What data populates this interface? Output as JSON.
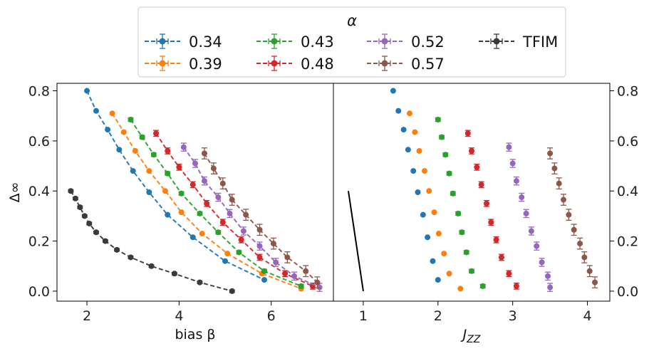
{
  "chart_data": [
    {
      "type": "scatter",
      "panel": "left",
      "xlabel": "bias β",
      "ylabel": "Δ∞",
      "xlim": [
        1.35,
        7.35
      ],
      "ylim": [
        -0.04,
        0.83
      ],
      "xticks": [
        2,
        4,
        6
      ],
      "yticks": [
        0.0,
        0.2,
        0.4,
        0.6,
        0.8
      ],
      "ytick_labels": [
        "0.0",
        "0.2",
        "0.4",
        "0.6",
        "0.8"
      ],
      "series": [
        {
          "name": "0.34",
          "color": "#1f77b4",
          "style": "dashed",
          "x": [
            2.0,
            2.2,
            2.45,
            2.7,
            3.0,
            3.35,
            3.75,
            4.3,
            5.0,
            5.85
          ],
          "y": [
            0.8,
            0.72,
            0.645,
            0.565,
            0.48,
            0.395,
            0.305,
            0.215,
            0.12,
            0.045
          ],
          "err": [
            0.003,
            0.003,
            0.003,
            0.003,
            0.003,
            0.003,
            0.003,
            0.003,
            0.003,
            0.003
          ]
        },
        {
          "name": "0.39",
          "color": "#ff7f0e",
          "style": "dashed",
          "x": [
            2.55,
            2.8,
            3.05,
            3.35,
            3.7,
            4.05,
            4.5,
            5.05,
            5.8,
            6.65
          ],
          "y": [
            0.71,
            0.635,
            0.56,
            0.48,
            0.4,
            0.315,
            0.23,
            0.15,
            0.07,
            0.01
          ],
          "err": [
            0.004,
            0.004,
            0.004,
            0.004,
            0.004,
            0.004,
            0.004,
            0.004,
            0.004,
            0.004
          ]
        },
        {
          "name": "0.43",
          "color": "#2ca02c",
          "style": "dashed",
          "x": [
            2.95,
            3.2,
            3.45,
            3.75,
            4.05,
            4.45,
            4.85,
            5.3,
            5.85,
            6.65
          ],
          "y": [
            0.685,
            0.615,
            0.545,
            0.47,
            0.39,
            0.31,
            0.235,
            0.155,
            0.08,
            0.02
          ],
          "err": [
            0.007,
            0.007,
            0.007,
            0.007,
            0.007,
            0.007,
            0.007,
            0.007,
            0.007,
            0.007
          ]
        },
        {
          "name": "0.48",
          "color": "#d62728",
          "style": "dashed",
          "x": [
            3.5,
            3.75,
            4.0,
            4.3,
            4.6,
            4.95,
            5.35,
            5.75,
            6.3,
            6.9
          ],
          "y": [
            0.63,
            0.56,
            0.495,
            0.425,
            0.35,
            0.275,
            0.205,
            0.135,
            0.07,
            0.02
          ],
          "err": [
            0.012,
            0.012,
            0.012,
            0.012,
            0.012,
            0.012,
            0.012,
            0.012,
            0.012,
            0.012
          ]
        },
        {
          "name": "0.52",
          "color": "#9467bd",
          "style": "dashed",
          "x": [
            4.1,
            4.35,
            4.55,
            4.85,
            5.1,
            5.4,
            5.75,
            6.1,
            6.5,
            7.05
          ],
          "y": [
            0.575,
            0.51,
            0.44,
            0.375,
            0.31,
            0.24,
            0.18,
            0.115,
            0.06,
            0.015
          ],
          "err": [
            0.016,
            0.016,
            0.016,
            0.016,
            0.016,
            0.016,
            0.016,
            0.016,
            0.016,
            0.016
          ]
        },
        {
          "name": "0.57",
          "color": "#8c564b",
          "style": "dashed",
          "x": [
            4.55,
            4.75,
            4.95,
            5.15,
            5.45,
            5.75,
            6.05,
            6.35,
            6.75,
            7.0
          ],
          "y": [
            0.55,
            0.49,
            0.43,
            0.365,
            0.305,
            0.245,
            0.19,
            0.135,
            0.08,
            0.035
          ],
          "err": [
            0.022,
            0.022,
            0.022,
            0.022,
            0.022,
            0.022,
            0.022,
            0.022,
            0.022,
            0.022
          ]
        },
        {
          "name": "TFIM",
          "color": "#3a3a3a",
          "style": "dashed",
          "x": [
            1.65,
            1.75,
            1.85,
            1.95,
            2.05,
            2.2,
            2.4,
            2.65,
            2.95,
            3.4,
            3.9,
            4.45,
            5.15
          ],
          "y": [
            0.4,
            0.37,
            0.335,
            0.3,
            0.27,
            0.235,
            0.2,
            0.165,
            0.135,
            0.1,
            0.07,
            0.035,
            0.0
          ],
          "err": [
            0.005,
            0.005,
            0.005,
            0.005,
            0.005,
            0.005,
            0.005,
            0.005,
            0.005,
            0.005,
            0.005,
            0.005,
            0.005
          ]
        }
      ]
    },
    {
      "type": "scatter",
      "panel": "right",
      "xlabel": "J",
      "xlabel_sub": "ZZ",
      "xlim": [
        0.6,
        4.3
      ],
      "ylim": [
        -0.04,
        0.83
      ],
      "xticks": [
        1,
        2,
        3,
        4
      ],
      "yticks": [
        0.0,
        0.2,
        0.4,
        0.6,
        0.8
      ],
      "ytick_labels": [
        "0.0",
        "0.2",
        "0.4",
        "0.6",
        "0.8"
      ],
      "tfim_line": {
        "x": [
          0.8,
          1.0
        ],
        "y": [
          0.4,
          0.0
        ],
        "color": "#000000"
      },
      "series": [
        {
          "name": "0.34",
          "color": "#1f77b4",
          "x": [
            1.4,
            1.47,
            1.54,
            1.6,
            1.67,
            1.73,
            1.8,
            1.86,
            1.93,
            2.0
          ],
          "y": [
            0.8,
            0.72,
            0.645,
            0.565,
            0.48,
            0.395,
            0.305,
            0.215,
            0.12,
            0.045
          ],
          "err": [
            0.003,
            0.003,
            0.003,
            0.003,
            0.003,
            0.003,
            0.003,
            0.003,
            0.003,
            0.003
          ]
        },
        {
          "name": "0.39",
          "color": "#ff7f0e",
          "x": [
            1.62,
            1.69,
            1.75,
            1.82,
            1.88,
            1.95,
            2.01,
            2.08,
            2.15,
            2.3
          ],
          "y": [
            0.71,
            0.635,
            0.56,
            0.48,
            0.4,
            0.315,
            0.23,
            0.15,
            0.07,
            0.01
          ],
          "err": [
            0.004,
            0.004,
            0.004,
            0.004,
            0.004,
            0.004,
            0.004,
            0.004,
            0.004,
            0.004
          ]
        },
        {
          "name": "0.43",
          "color": "#2ca02c",
          "x": [
            2.0,
            2.05,
            2.1,
            2.15,
            2.2,
            2.27,
            2.32,
            2.38,
            2.45,
            2.6
          ],
          "y": [
            0.685,
            0.615,
            0.545,
            0.47,
            0.39,
            0.31,
            0.235,
            0.155,
            0.08,
            0.02
          ],
          "err": [
            0.007,
            0.007,
            0.007,
            0.007,
            0.007,
            0.007,
            0.007,
            0.007,
            0.007,
            0.007
          ]
        },
        {
          "name": "0.48",
          "color": "#d62728",
          "x": [
            2.4,
            2.45,
            2.52,
            2.58,
            2.65,
            2.71,
            2.78,
            2.85,
            2.95,
            3.05
          ],
          "y": [
            0.63,
            0.56,
            0.495,
            0.425,
            0.35,
            0.275,
            0.205,
            0.135,
            0.07,
            0.02
          ],
          "err": [
            0.012,
            0.012,
            0.012,
            0.012,
            0.012,
            0.012,
            0.012,
            0.012,
            0.012,
            0.012
          ]
        },
        {
          "name": "0.52",
          "color": "#9467bd",
          "x": [
            2.95,
            3.0,
            3.05,
            3.12,
            3.18,
            3.25,
            3.32,
            3.39,
            3.47,
            3.5
          ],
          "y": [
            0.575,
            0.51,
            0.44,
            0.375,
            0.31,
            0.24,
            0.18,
            0.115,
            0.06,
            0.015
          ],
          "err": [
            0.016,
            0.016,
            0.016,
            0.016,
            0.016,
            0.016,
            0.016,
            0.016,
            0.016,
            0.016
          ]
        },
        {
          "name": "0.57",
          "color": "#8c564b",
          "x": [
            3.5,
            3.56,
            3.62,
            3.68,
            3.75,
            3.82,
            3.9,
            3.96,
            4.03,
            4.1
          ],
          "y": [
            0.55,
            0.49,
            0.43,
            0.365,
            0.305,
            0.245,
            0.19,
            0.135,
            0.08,
            0.035
          ],
          "err": [
            0.022,
            0.022,
            0.022,
            0.022,
            0.022,
            0.022,
            0.022,
            0.022,
            0.022,
            0.022
          ]
        }
      ]
    }
  ],
  "legend": {
    "title": "α",
    "location": "top-center",
    "entries": [
      {
        "label": "0.34",
        "color": "#1f77b4"
      },
      {
        "label": "0.39",
        "color": "#ff7f0e"
      },
      {
        "label": "0.43",
        "color": "#2ca02c"
      },
      {
        "label": "0.48",
        "color": "#d62728"
      },
      {
        "label": "0.52",
        "color": "#9467bd"
      },
      {
        "label": "0.57",
        "color": "#8c564b"
      },
      {
        "label": "TFIM",
        "color": "#3a3a3a"
      }
    ]
  }
}
